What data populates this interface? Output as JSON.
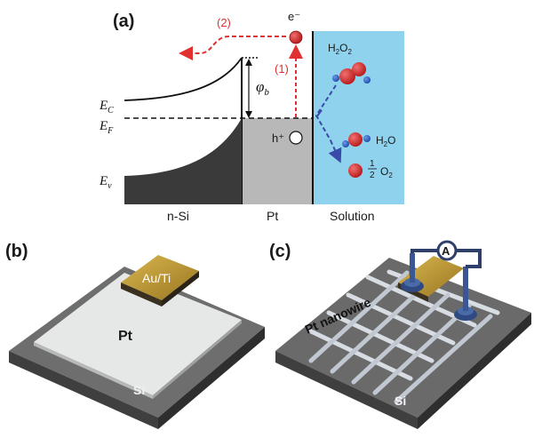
{
  "panel_a": {
    "label": "(a)",
    "step_2": "(2)",
    "step_1": "(1)",
    "electron": "e⁻",
    "hole": "h⁺",
    "E_C": "E",
    "E_C_sub": "C",
    "E_F": "E",
    "E_F_sub": "F",
    "E_V": "E",
    "E_V_sub": "v",
    "phi": "φ",
    "phi_sub": "b",
    "h2o2": "H",
    "h2o2_sub1": "2",
    "h2o2_mid": "O",
    "h2o2_sub2": "2",
    "h2o": "H",
    "h2o_sub": "2",
    "h2o_end": "O",
    "o2_num": "1",
    "o2_den": "2",
    "o2": "O",
    "o2_sub": "2",
    "region_nsi": "n-Si",
    "region_pt": "Pt",
    "region_solution": "Solution"
  },
  "panel_b": {
    "label": "(b)",
    "contact": "Au/Ti",
    "pt": "Pt",
    "si": "Si"
  },
  "panel_c": {
    "label": "(c)",
    "ammeter": "A",
    "nanowire": "Pt nanowire",
    "si": "Si"
  },
  "colors": {
    "solution": "#8fd2ee",
    "pt_region": "#b8b8b8",
    "valence_fill": "#3a3a3a",
    "arrow_red": "#e03030",
    "arrow_blue": "#3a4aa8",
    "molecule_red": "#d42222",
    "molecule_blue": "#2a5fc8",
    "gold": "#b8902a",
    "substrate": "#5d5d5d",
    "pt_film": "#e6e8e8",
    "wire": "#a8b4cc"
  }
}
